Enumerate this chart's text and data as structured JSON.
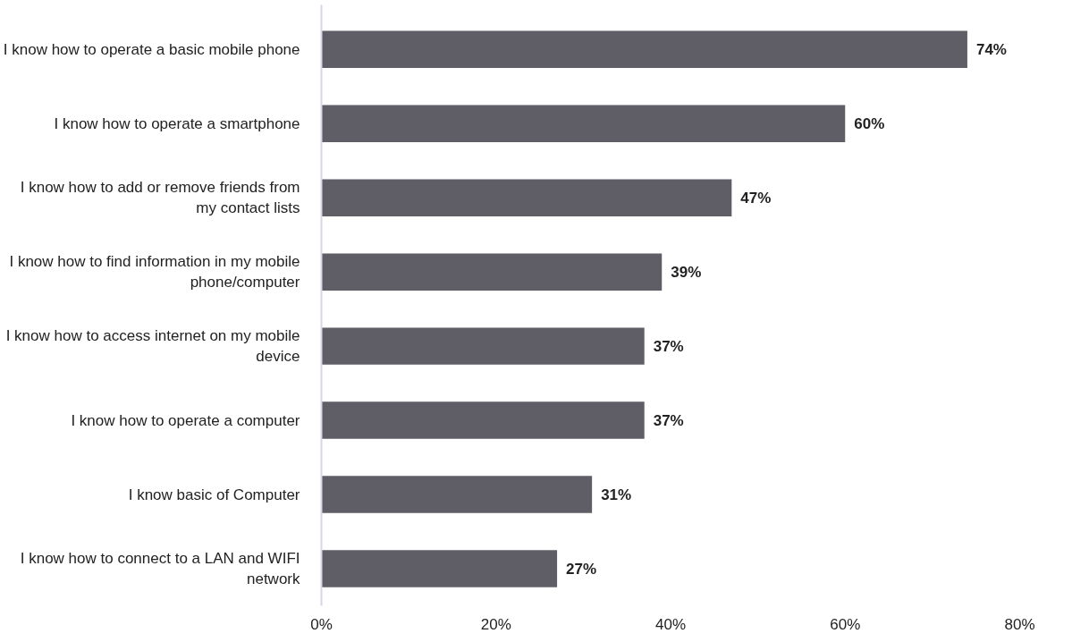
{
  "chart_data": {
    "type": "bar",
    "orientation": "horizontal",
    "categories": [
      "I know how to operate a basic mobile phone",
      "I know how to operate a smartphone",
      "I know how to add or remove friends from\nmy contact lists",
      "I know how to find information in my mobile\nphone/computer",
      "I know how to access internet on my mobile\ndevice",
      "I know how to operate a computer",
      "I know basic of Computer",
      "I know how to connect to a LAN and WIFI\nnetwork"
    ],
    "values": [
      74,
      60,
      47,
      39,
      37,
      37,
      31,
      27
    ],
    "color": "#5f5e66",
    "xlim": [
      0,
      80
    ],
    "xticks": [
      {
        "value": 0,
        "label": "0%"
      },
      {
        "value": 20,
        "label": "20%"
      },
      {
        "value": 40,
        "label": "40%"
      },
      {
        "value": 60,
        "label": "60%"
      },
      {
        "value": 80,
        "label": "80%"
      }
    ],
    "value_labels": [
      "74%",
      "60%",
      "47%",
      "39%",
      "37%",
      "37%",
      "31%",
      "27%"
    ],
    "grid": false
  }
}
